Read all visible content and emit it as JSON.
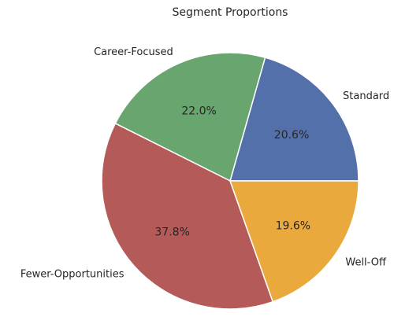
{
  "chart_data": {
    "type": "pie",
    "title": "Segment Proportions",
    "slices": [
      {
        "label": "Standard",
        "value": 20.6,
        "pct_text": "20.6%",
        "color": "#4c72b0"
      },
      {
        "label": "Career-Focused",
        "value": 22.0,
        "pct_text": "22.0%",
        "color": "#55a868"
      },
      {
        "label": "Fewer-Opportunities",
        "value": 37.8,
        "pct_text": "37.8%",
        "color": "#c44e52"
      },
      {
        "label": "Well-Off",
        "value": 19.6,
        "pct_text": "19.6%",
        "color": "#dd8452"
      }
    ],
    "start_angle_deg": 0,
    "direction": "counterclockwise",
    "edge_color": "#ffffff",
    "legend": "none"
  }
}
